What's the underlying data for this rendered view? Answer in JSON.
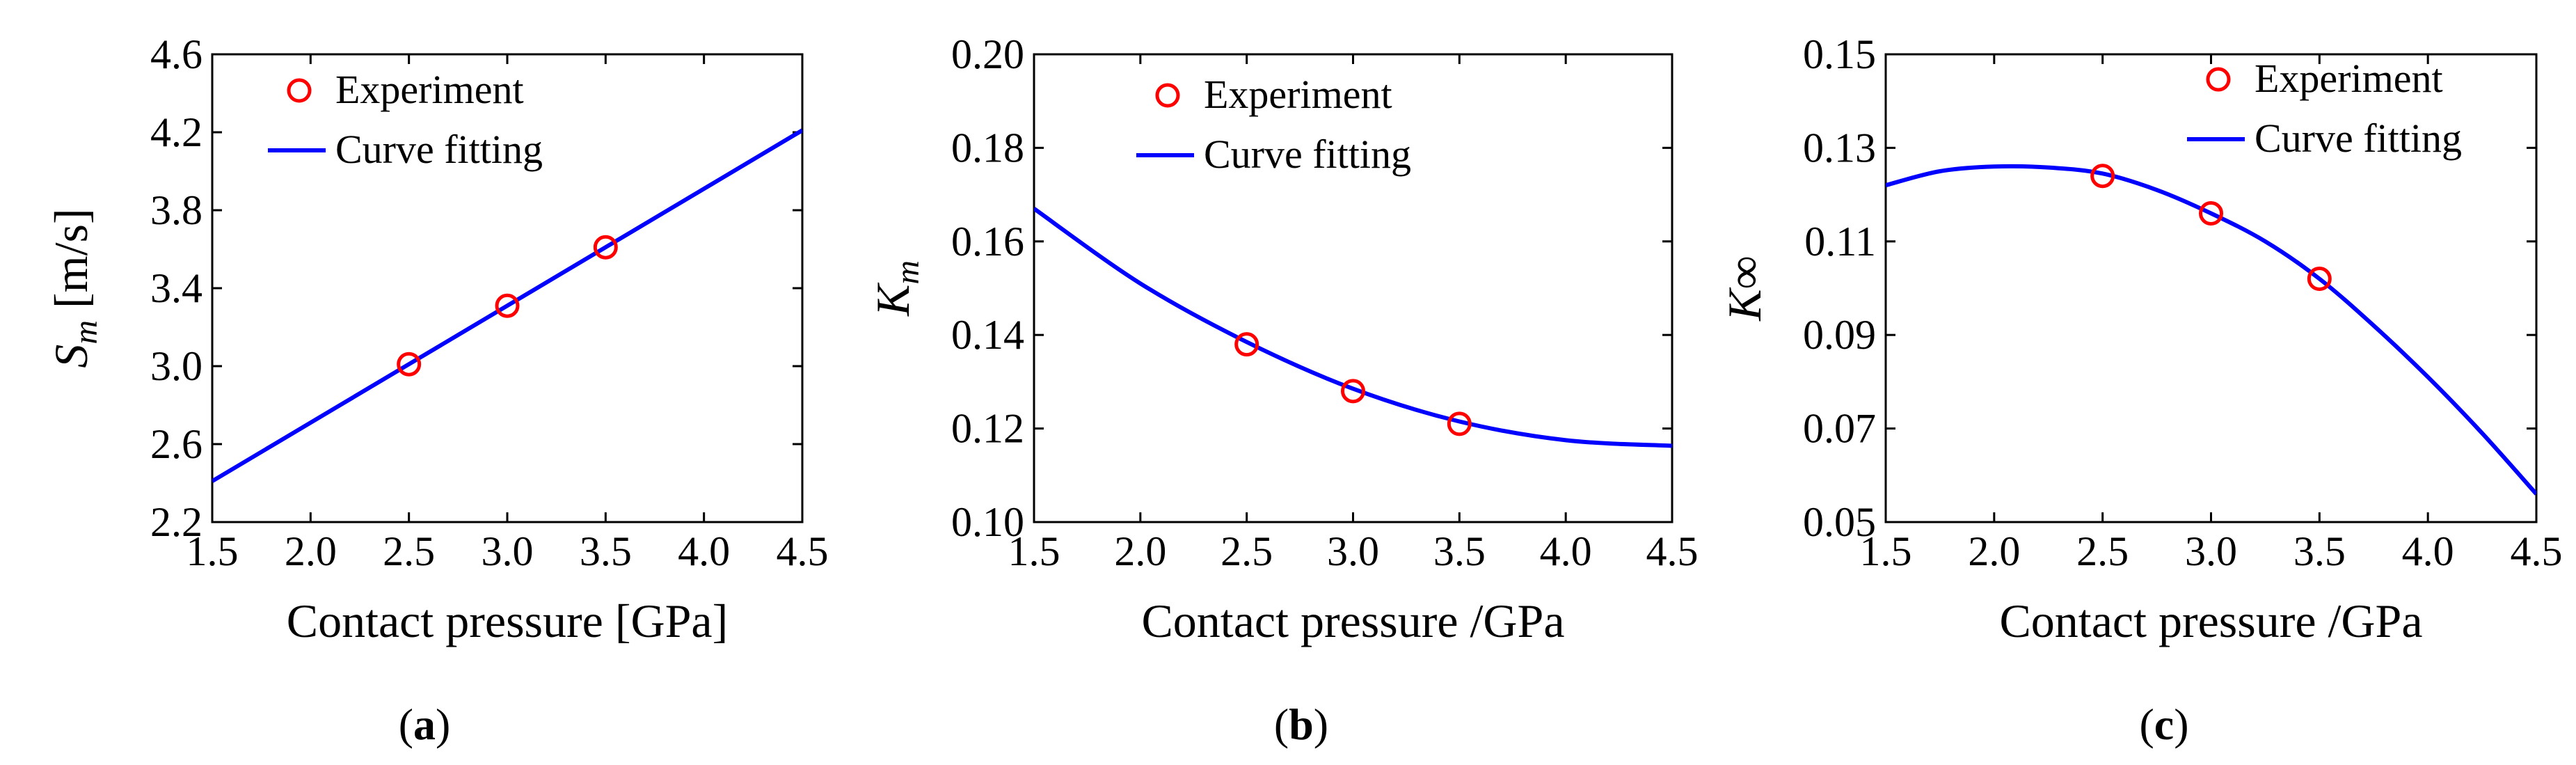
{
  "chart_data": [
    {
      "type": "line",
      "panel": "a",
      "caption": {
        "open": "(",
        "letter": "a",
        "close": ")"
      },
      "xlabel": "Contact pressure [GPa]",
      "ylabel": {
        "main": "S",
        "sub": "m",
        "rest": " [m/s]"
      },
      "xlim": [
        1.5,
        4.5
      ],
      "ylim": [
        2.2,
        4.6
      ],
      "xticks": [
        "1.5",
        "2.0",
        "2.5",
        "3.0",
        "3.5",
        "4.0",
        "4.5"
      ],
      "yticks": [
        "2.2",
        "2.6",
        "3.0",
        "3.4",
        "3.8",
        "4.2",
        "4.6"
      ],
      "legend": {
        "position": "top-left",
        "experiment": "Experiment",
        "fit": "Curve fitting"
      },
      "series": [
        {
          "name": "Experiment",
          "kind": "markers",
          "x": [
            2.5,
            3.0,
            3.5
          ],
          "y": [
            3.01,
            3.31,
            3.61
          ]
        },
        {
          "name": "Curve fitting",
          "kind": "line",
          "x": [
            1.5,
            2.0,
            2.5,
            3.0,
            3.5,
            4.0,
            4.5
          ],
          "y": [
            2.41,
            2.71,
            3.01,
            3.31,
            3.61,
            3.91,
            4.21
          ]
        }
      ],
      "colors": {
        "marker": "#ff0000",
        "line": "#0000ff"
      }
    },
    {
      "type": "line",
      "panel": "b",
      "caption": {
        "open": "(",
        "letter": "b",
        "close": ")"
      },
      "xlabel": "Contact pressure /GPa",
      "ylabel": {
        "main": "K",
        "sub": "m",
        "rest": ""
      },
      "xlim": [
        1.5,
        4.5
      ],
      "ylim": [
        0.1,
        0.2
      ],
      "xticks": [
        "1.5",
        "2.0",
        "2.5",
        "3.0",
        "3.5",
        "4.0",
        "4.5"
      ],
      "yticks": [
        "0.10",
        "0.12",
        "0.14",
        "0.16",
        "0.18",
        "0.20"
      ],
      "legend": {
        "position": "top-right",
        "experiment": "Experiment",
        "fit": "Curve fitting"
      },
      "series": [
        {
          "name": "Experiment",
          "kind": "markers",
          "x": [
            2.5,
            3.0,
            3.5
          ],
          "y": [
            0.138,
            0.128,
            0.121
          ]
        },
        {
          "name": "Curve fitting",
          "kind": "line",
          "x": [
            1.5,
            2.0,
            2.5,
            3.0,
            3.5,
            4.0,
            4.5
          ],
          "y": [
            0.167,
            0.151,
            0.1385,
            0.1285,
            0.1215,
            0.1175,
            0.1163
          ]
        }
      ],
      "colors": {
        "marker": "#ff0000",
        "line": "#0000ff"
      }
    },
    {
      "type": "line",
      "panel": "c",
      "caption": {
        "open": "(",
        "letter": "c",
        "close": ")"
      },
      "xlabel": "Contact pressure /GPa",
      "ylabel": {
        "main": "K",
        "sub": "",
        "rest": "∞"
      },
      "xlim": [
        1.5,
        4.5
      ],
      "ylim": [
        0.05,
        0.15
      ],
      "xticks": [
        "1.5",
        "2.0",
        "2.5",
        "3.0",
        "3.5",
        "4.0",
        "4.5"
      ],
      "yticks": [
        "0.05",
        "0.07",
        "0.09",
        "0.11",
        "0.13",
        "0.15"
      ],
      "legend": {
        "position": "top-right",
        "experiment": "Experiment",
        "fit": "Curve fitting"
      },
      "series": [
        {
          "name": "Experiment",
          "kind": "markers",
          "x": [
            2.5,
            3.0,
            3.5
          ],
          "y": [
            0.124,
            0.116,
            0.102
          ]
        },
        {
          "name": "Curve fitting",
          "kind": "line",
          "x": [
            1.5,
            1.75,
            2.0,
            2.25,
            2.5,
            2.75,
            3.0,
            3.25,
            3.5,
            3.75,
            4.0,
            4.25,
            4.5
          ],
          "y": [
            0.122,
            0.125,
            0.126,
            0.1258,
            0.1245,
            0.121,
            0.116,
            0.11,
            0.102,
            0.092,
            0.081,
            0.069,
            0.056
          ]
        }
      ],
      "colors": {
        "marker": "#ff0000",
        "line": "#0000ff"
      }
    }
  ]
}
